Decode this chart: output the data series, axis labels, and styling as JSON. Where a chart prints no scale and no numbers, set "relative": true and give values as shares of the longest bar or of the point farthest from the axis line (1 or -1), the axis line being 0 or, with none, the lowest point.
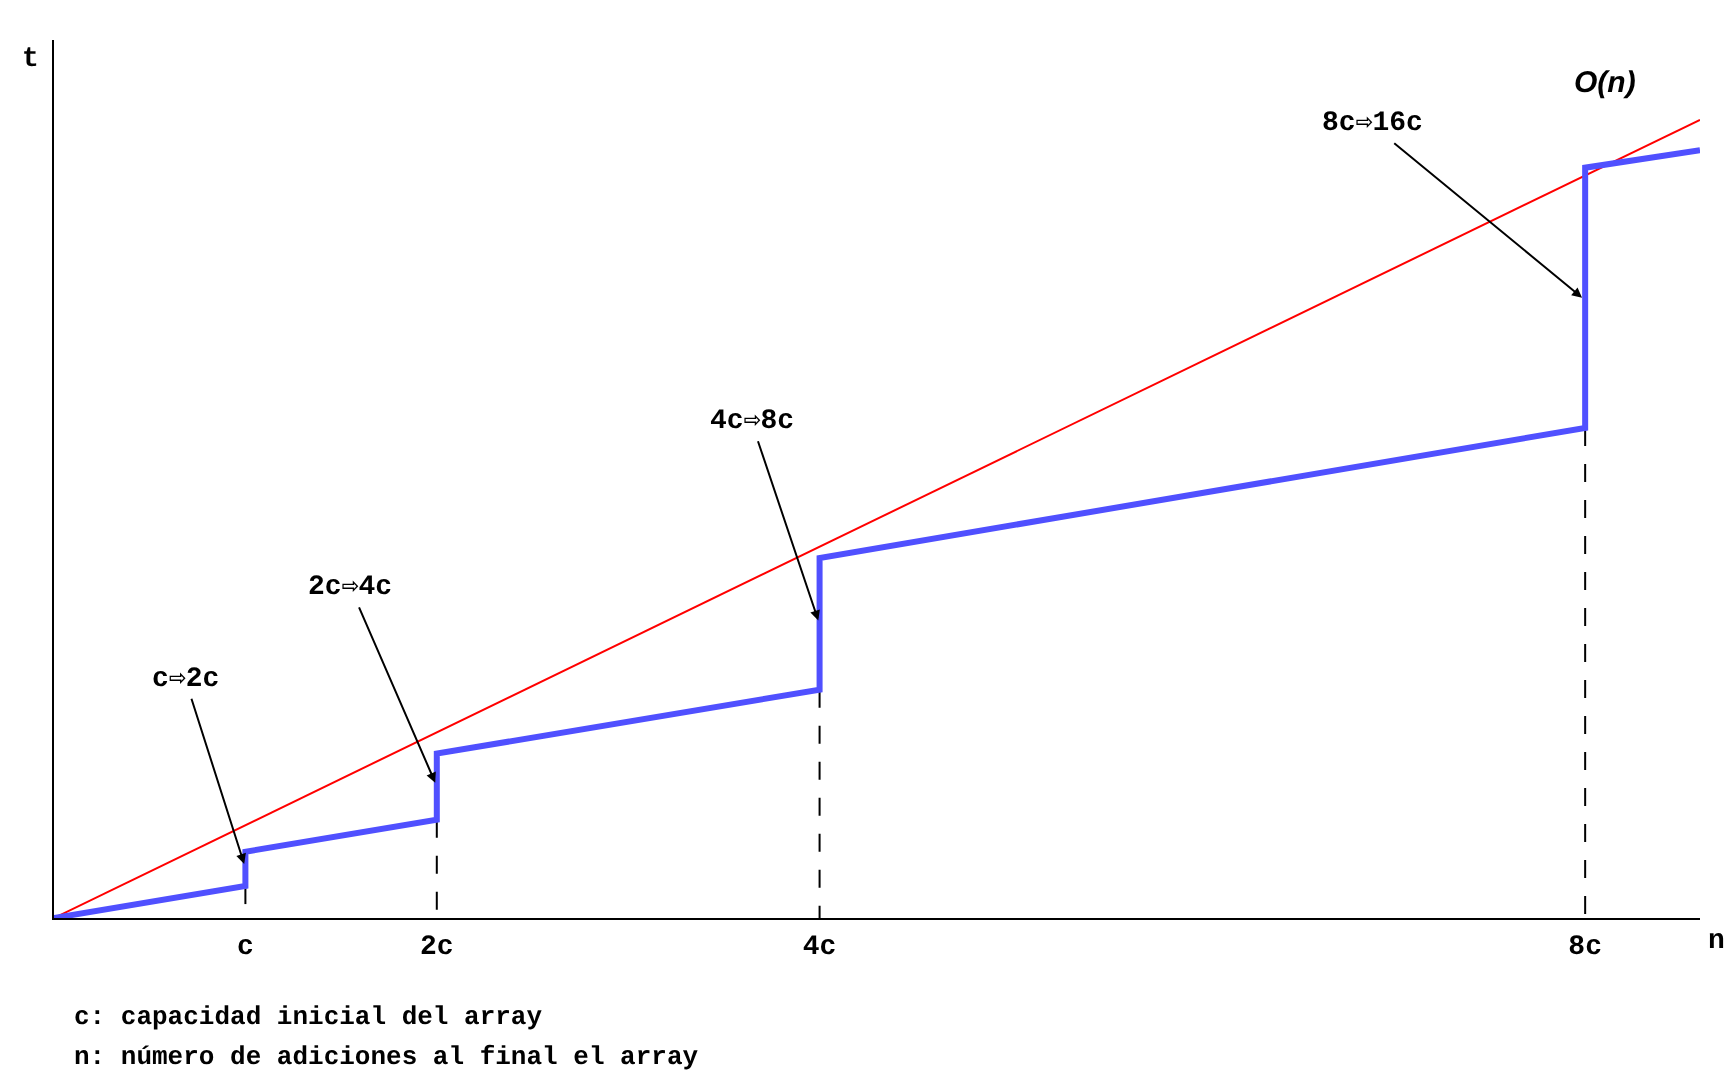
{
  "chart_data": {
    "type": "line",
    "relative": true,
    "xlabel": "n",
    "ylabel": "t",
    "xlim": [
      0,
      8.6
    ],
    "xticks": [
      {
        "value": 1,
        "label": "c"
      },
      {
        "value": 2,
        "label": "2c"
      },
      {
        "value": 4,
        "label": "4c"
      },
      {
        "value": 8,
        "label": "8c"
      }
    ],
    "series": [
      {
        "color": "#5050ff",
        "x": [
          0,
          1,
          1,
          2,
          2,
          4,
          4,
          8,
          8,
          8.6
        ],
        "values": [
          0,
          0.04,
          0.083,
          0.123,
          0.206,
          0.286,
          0.451,
          0.614,
          0.94,
          0.962
        ]
      },
      {
        "name": "O(n)",
        "color": "#ff0000",
        "x": [
          0,
          8.6
        ],
        "values": [
          0,
          1
        ]
      },
      {
        "color": "#000000",
        "line_style": "dashed",
        "x": [
          1,
          1
        ],
        "values": [
          0.04,
          0
        ]
      },
      {
        "color": "#000000",
        "line_style": "dashed",
        "x": [
          2,
          2
        ],
        "values": [
          0.123,
          0
        ]
      },
      {
        "color": "#000000",
        "line_style": "dashed",
        "x": [
          4,
          4
        ],
        "values": [
          0.286,
          0
        ]
      },
      {
        "color": "#000000",
        "line_style": "dashed",
        "x": [
          8,
          8
        ],
        "values": [
          0.614,
          0
        ]
      }
    ],
    "annotations": [
      {
        "text": "c⇨2c",
        "x": 1,
        "y": 0.063
      },
      {
        "text": "2c⇨4c",
        "x": 2,
        "y": 0.165
      },
      {
        "text": "4c⇨8c",
        "x": 4,
        "y": 0.368
      },
      {
        "text": "8c⇨16c",
        "x": 8,
        "y": 0.774
      },
      "c: capacidad inicial del array",
      "n: número de adiciones al final el array"
    ],
    "grid": false,
    "legend": false
  }
}
